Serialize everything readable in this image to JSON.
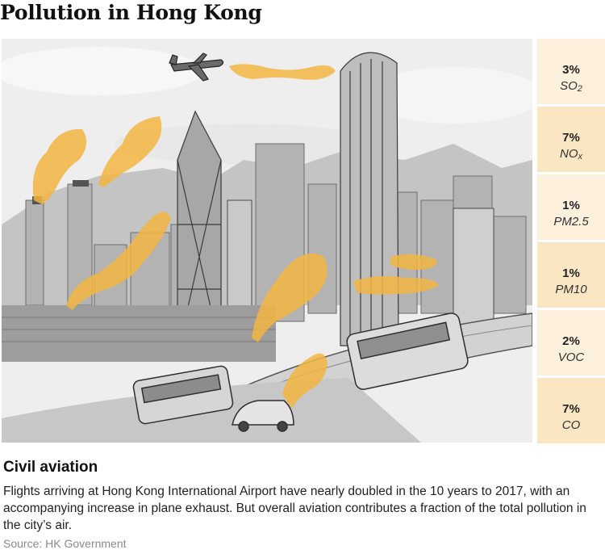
{
  "title": "Pollution in Hong Kong",
  "illustration": {
    "subject": "city skyline with aircraft and traffic",
    "exhaust_color": "#f2b642"
  },
  "pollutants": [
    {
      "value": "3%",
      "name": "SO",
      "sub": "2"
    },
    {
      "value": "7%",
      "name": "NO",
      "sub": "x"
    },
    {
      "value": "1%",
      "name": "PM2.5",
      "sub": ""
    },
    {
      "value": "1%",
      "name": "PM10",
      "sub": ""
    },
    {
      "value": "2%",
      "name": "VOC",
      "sub": ""
    },
    {
      "value": "7%",
      "name": "CO",
      "sub": ""
    }
  ],
  "section": {
    "heading": "Civil aviation",
    "body": "Flights arriving at Hong Kong International Airport have nearly doubled in the 10 years to 2017, with an accompanying increase in plane exhaust. But overall aviation contributes a fraction of the total pollution in the city’s air.",
    "source": "Source: HK Government"
  },
  "colors": {
    "tile_light": "#fdf0dc",
    "tile_dark": "#fbe6c4",
    "source_text": "#8a8a8a"
  }
}
